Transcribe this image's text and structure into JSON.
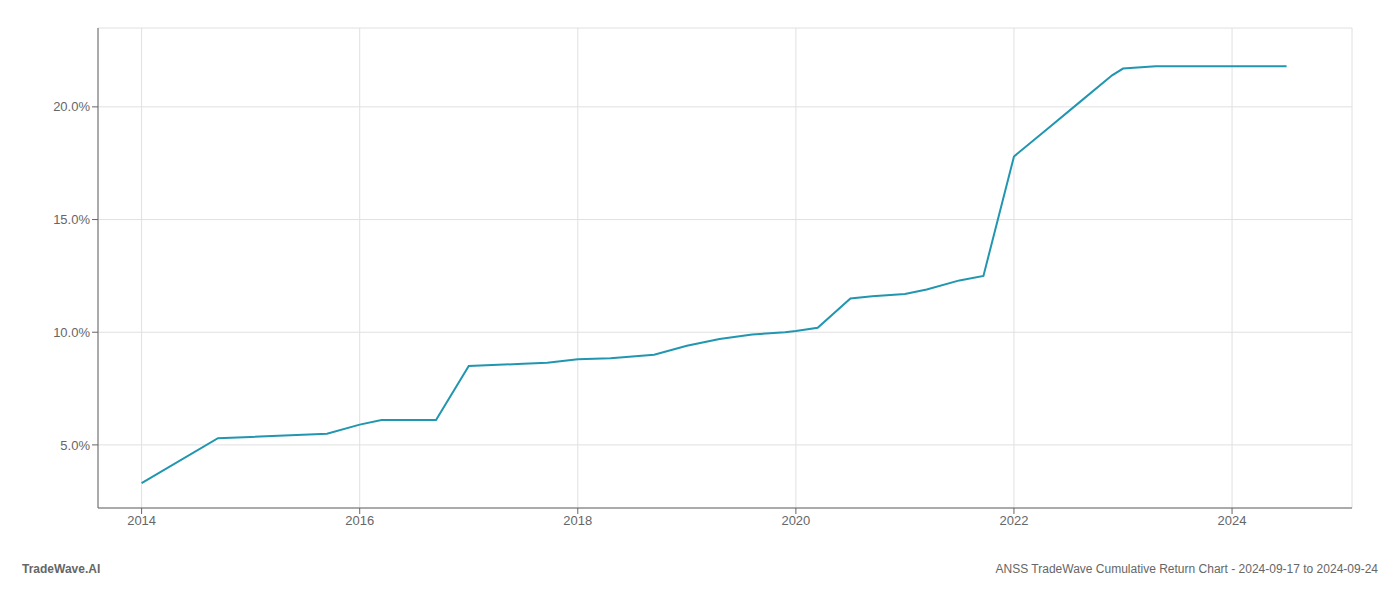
{
  "chart_data": {
    "type": "line",
    "x": [
      2014.0,
      2014.7,
      2015.0,
      2015.7,
      2016.0,
      2016.2,
      2016.7,
      2017.0,
      2017.5,
      2017.72,
      2018.0,
      2018.3,
      2018.7,
      2019.0,
      2019.3,
      2019.6,
      2019.9,
      2020.0,
      2020.2,
      2020.5,
      2020.7,
      2021.0,
      2021.2,
      2021.5,
      2021.72,
      2022.0,
      2022.3,
      2022.6,
      2022.9,
      2023.0,
      2023.3,
      2023.5,
      2023.7,
      2024.0,
      2024.5
    ],
    "values": [
      3.3,
      5.3,
      5.35,
      5.5,
      5.9,
      6.1,
      6.1,
      8.5,
      8.6,
      8.65,
      8.8,
      8.85,
      9.0,
      9.4,
      9.7,
      9.9,
      10.0,
      10.05,
      10.2,
      11.5,
      11.6,
      11.7,
      11.9,
      12.3,
      12.5,
      17.8,
      19.0,
      20.2,
      21.4,
      21.7,
      21.8,
      21.8,
      21.8,
      21.8,
      21.8
    ],
    "color": "#2196b0",
    "xlim": [
      2013.6,
      2025.1
    ],
    "ylim": [
      2.2,
      23.5
    ],
    "xticks": [
      2014,
      2016,
      2018,
      2020,
      2022,
      2024
    ],
    "yticks": [
      {
        "value": 5.0,
        "label": "5.0%"
      },
      {
        "value": 10.0,
        "label": "10.0%"
      },
      {
        "value": 15.0,
        "label": "15.0%"
      },
      {
        "value": 20.0,
        "label": "20.0%"
      }
    ],
    "grid": true,
    "annotations": [
      "TradeWave.AI",
      "ANSS TradeWave Cumulative Return Chart - 2024-09-17 to 2024-09-24"
    ]
  }
}
